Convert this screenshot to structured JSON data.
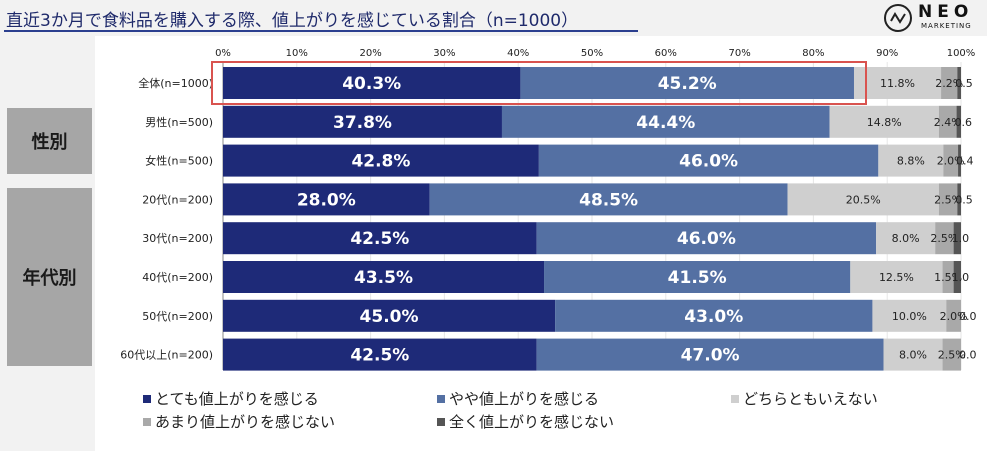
{
  "title": "直近3か月で食料品を購入する際、値上がりを感じている割合（n=1000）",
  "logo": {
    "name": "NEO",
    "sub": "MARKETING"
  },
  "groups": {
    "gender": "性別",
    "age": "年代別"
  },
  "colors": {
    "very_feel": "#1e2a78",
    "somewhat_feel": "#5470a3",
    "neither": "#cfcfcf",
    "not_much": "#a9a9a9",
    "not_at_all": "#555555",
    "highlight": "#d9534f"
  },
  "chart_data": {
    "type": "bar",
    "orientation": "horizontal",
    "stacked": true,
    "title": "直近3か月で食料品を購入する際、値上がりを感じている割合（n=1000）",
    "x_ticks": [
      "0%",
      "10%",
      "20%",
      "30%",
      "40%",
      "50%",
      "60%",
      "70%",
      "80%",
      "90%",
      "100%"
    ],
    "xlim": [
      0,
      100
    ],
    "categories": [
      "全体(n=1000)",
      "男性(n=500)",
      "女性(n=500)",
      "20代(n=200)",
      "30代(n=200)",
      "40代(n=200)",
      "50代(n=200)",
      "60代以上(n=200)"
    ],
    "series": [
      {
        "name": "とても値上がりを感じる",
        "values": [
          40.3,
          37.8,
          42.8,
          28.0,
          42.5,
          43.5,
          45.0,
          42.5
        ],
        "labels": [
          "40.3%",
          "37.8%",
          "42.8%",
          "28.0%",
          "42.5%",
          "43.5%",
          "45.0%",
          "42.5%"
        ]
      },
      {
        "name": "やや値上がりを感じる",
        "values": [
          45.2,
          44.4,
          46.0,
          48.5,
          46.0,
          41.5,
          43.0,
          47.0
        ],
        "labels": [
          "45.2%",
          "44.4%",
          "46.0%",
          "48.5%",
          "46.0%",
          "41.5%",
          "43.0%",
          "47.0%"
        ]
      },
      {
        "name": "どちらともいえない",
        "values": [
          11.8,
          14.8,
          8.8,
          20.5,
          8.0,
          12.5,
          10.0,
          8.0
        ],
        "labels": [
          "11.8%",
          "14.8%",
          "8.8%",
          "20.5%",
          "8.0%",
          "12.5%",
          "10.0%",
          "8.0%"
        ]
      },
      {
        "name": "あまり値上がりを感じない",
        "values": [
          2.2,
          2.4,
          2.0,
          2.5,
          2.5,
          1.5,
          2.0,
          2.5
        ],
        "labels": [
          "2.2%",
          "2.4%",
          "2.0%",
          "2.5%",
          "2.5%",
          "1.5%",
          "2.0%",
          "2.5%"
        ]
      },
      {
        "name": "全く値上がりを感じない",
        "values": [
          0.5,
          0.6,
          0.4,
          0.5,
          1.0,
          1.0,
          0.0,
          0.0
        ],
        "labels": [
          "0.5",
          "0.6",
          "0.4",
          "0.5",
          "1.0",
          "1.0",
          "0.0",
          "0.0"
        ]
      }
    ],
    "legend_position": "bottom",
    "highlight_category": "全体(n=1000)"
  }
}
